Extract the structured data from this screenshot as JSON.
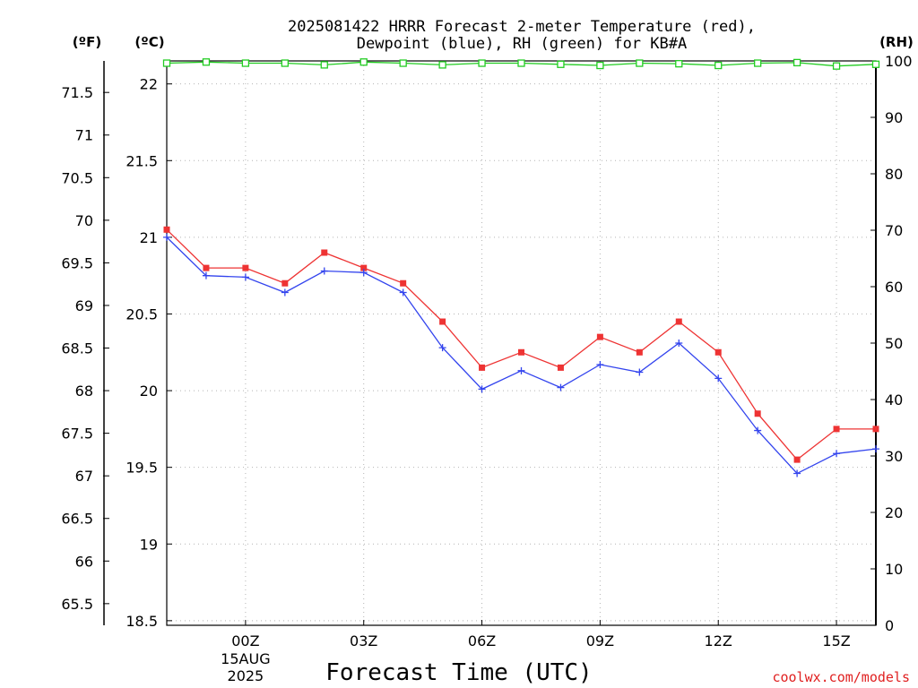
{
  "title_line1": "2025081422 HRRR Forecast 2-meter Temperature (red),",
  "title_line2": "Dewpoint (blue), RH (green) for KB#A",
  "axis_headers": {
    "fahrenheit": "(ºF)",
    "celsius": "(ºC)",
    "rh": "(RH)"
  },
  "credit": "coolwx.com/models",
  "colors": {
    "temperature": "#ee3333",
    "dewpoint": "#3344ee",
    "rh": "#22cc22",
    "grid": "#b4b4b4"
  },
  "chart_data": {
    "type": "line",
    "title": "2025081422 HRRR Forecast 2-meter Temperature (red), Dewpoint (blue), RH (green) for KB#A",
    "xlabel": "Forecast Time (UTC)",
    "x": [
      "22Z",
      "23Z",
      "00Z",
      "01Z",
      "02Z",
      "03Z",
      "04Z",
      "05Z",
      "06Z",
      "07Z",
      "08Z",
      "09Z",
      "10Z",
      "11Z",
      "12Z",
      "13Z",
      "14Z",
      "15Z",
      "16Z"
    ],
    "x_tick_labels": [
      {
        "label": "00Z",
        "sub": [
          "15AUG",
          "2025"
        ]
      },
      {
        "label": "03Z",
        "sub": []
      },
      {
        "label": "06Z",
        "sub": []
      },
      {
        "label": "09Z",
        "sub": []
      },
      {
        "label": "12Z",
        "sub": []
      },
      {
        "label": "15Z",
        "sub": []
      }
    ],
    "y_left_celsius": {
      "label": "(ºC)",
      "ylim": [
        18.47,
        22.15
      ],
      "ticks": [
        "18.5",
        "19",
        "19.5",
        "20",
        "20.5",
        "21",
        "21.5",
        "22"
      ]
    },
    "y_left_fahrenheit": {
      "label": "(ºF)",
      "ticks": [
        "65.5",
        "66",
        "66.5",
        "67",
        "67.5",
        "68",
        "68.5",
        "69",
        "69.5",
        "70",
        "70.5",
        "71",
        "71.5"
      ]
    },
    "y_right_rh": {
      "label": "(RH)",
      "ylim": [
        0,
        100
      ],
      "ticks": [
        "0",
        "10",
        "20",
        "30",
        "40",
        "50",
        "60",
        "70",
        "80",
        "90",
        "100"
      ]
    },
    "grid": true,
    "series": [
      {
        "name": "Temperature",
        "units": "C",
        "color": "#ee3333",
        "marker": "filled-square",
        "values": [
          21.05,
          20.8,
          20.8,
          20.7,
          20.9,
          20.8,
          20.7,
          20.45,
          20.15,
          20.25,
          20.15,
          20.35,
          20.25,
          20.45,
          20.25,
          19.85,
          19.55,
          19.75,
          19.75
        ]
      },
      {
        "name": "Dewpoint",
        "units": "C",
        "color": "#3344ee",
        "marker": "plus",
        "values": [
          21.0,
          20.75,
          20.74,
          20.64,
          20.78,
          20.77,
          20.64,
          20.28,
          20.01,
          20.13,
          20.02,
          20.17,
          20.12,
          20.31,
          20.08,
          19.74,
          19.46,
          19.59,
          19.62
        ]
      },
      {
        "name": "RH",
        "units": "%",
        "color": "#22cc22",
        "marker": "open-square",
        "values": [
          99.6,
          99.8,
          99.6,
          99.6,
          99.3,
          99.8,
          99.6,
          99.3,
          99.6,
          99.6,
          99.4,
          99.2,
          99.6,
          99.5,
          99.2,
          99.6,
          99.7,
          99.1,
          99.4
        ]
      }
    ]
  }
}
